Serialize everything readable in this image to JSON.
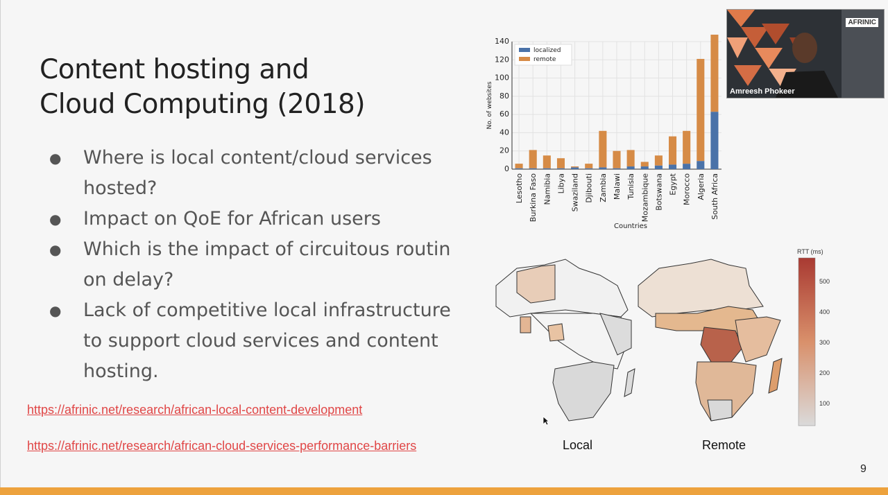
{
  "slide": {
    "title_line1": "Content hosting and",
    "title_line2": "Cloud Computing (2018)",
    "bullets": [
      "Where is local content/cloud services hosted?",
      "Impact on QoE for African users",
      "Which is the impact of circuitous routin on delay?",
      "Lack of competitive local infrastructure to support cloud services and content hosting."
    ],
    "links": [
      "https://afrinic.net/research/african-local-content-development",
      "https://afrinic.net/research/african-cloud-services-performance-barriers"
    ],
    "page_number": "9",
    "map_labels": [
      "Local",
      "Remote"
    ],
    "accent_color": "#eda23d",
    "link_color": "#e04646"
  },
  "video": {
    "participant_name": "Amreesh Phokeer",
    "logo_text": "AFRINIC"
  },
  "chart_data": {
    "type": "bar",
    "stacked": true,
    "categories": [
      "Lesotho",
      "Burkina Faso",
      "Namibia",
      "Libya",
      "Swaziland",
      "Djibouti",
      "Zambia",
      "Malawi",
      "Tunisia",
      "Mozambique",
      "Botswana",
      "Egypt",
      "Morocco",
      "Algeria",
      "South Africa"
    ],
    "series": [
      {
        "name": "localized",
        "color": "#4a72a8",
        "values": [
          1,
          1,
          1,
          1,
          2,
          1,
          2,
          1,
          3,
          3,
          4,
          5,
          6,
          9,
          63
        ]
      },
      {
        "name": "remote",
        "color": "#d68b46",
        "values": [
          5,
          20,
          14,
          11,
          1,
          5,
          40,
          19,
          18,
          5,
          11,
          31,
          36,
          112,
          85
        ]
      }
    ],
    "xlabel": "Countries",
    "ylabel": "No. of websites",
    "ylim": [
      0,
      140
    ],
    "yticks": [
      0,
      20,
      40,
      60,
      80,
      100,
      120,
      140
    ],
    "grid": true,
    "legend": "top-left"
  },
  "map_colorbar": {
    "title": "RTT (ms)",
    "ticks": [
      "500",
      "400",
      "300",
      "200",
      "100"
    ]
  }
}
